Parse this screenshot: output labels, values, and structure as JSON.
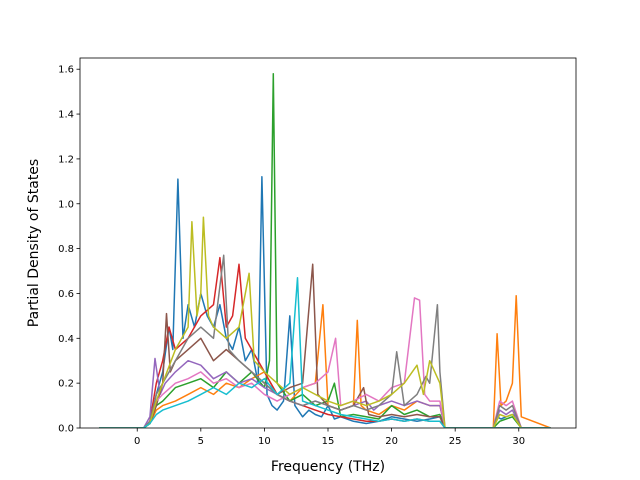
{
  "chart_data": {
    "type": "line",
    "title": "",
    "xlabel": "Frequency (THz)",
    "ylabel": "Partial Density of States",
    "xlim": [
      -4.5,
      34.5
    ],
    "ylim": [
      0,
      1.65
    ],
    "xticks": [
      0,
      5,
      10,
      15,
      20,
      25,
      30
    ],
    "yticks": [
      0.0,
      0.2,
      0.4,
      0.6,
      0.8,
      1.0,
      1.2,
      1.4,
      1.6
    ],
    "ytick_labels": [
      "0.0",
      "0.2",
      "0.4",
      "0.6",
      "0.8",
      "1.0",
      "1.2",
      "1.4",
      "1.6"
    ],
    "grid": false,
    "legend": "none",
    "series": [
      {
        "color": "#1f77b4",
        "x": [
          -3,
          0.5,
          1.0,
          1.5,
          2.0,
          2.5,
          2.8,
          3.2,
          3.6,
          4.0,
          4.5,
          5.0,
          5.5,
          6.0,
          6.5,
          7.0,
          7.5,
          8.0,
          8.5,
          9.0,
          9.5,
          9.8,
          10.2,
          10.6,
          11.0,
          11.5,
          12.0,
          12.4,
          13.0,
          13.5,
          14.0,
          14.5,
          15.0,
          15.5,
          16.0,
          17.0,
          18.0,
          19.0,
          20.0,
          21.0,
          22.0,
          23.0,
          23.8,
          24.2,
          28.0,
          28.3,
          28.6,
          29.0,
          29.5,
          29.8,
          30.2,
          32.5
        ],
        "y": [
          0,
          0,
          0.02,
          0.15,
          0.25,
          0.45,
          0.35,
          1.11,
          0.4,
          0.55,
          0.45,
          0.6,
          0.5,
          0.45,
          0.55,
          0.4,
          0.35,
          0.45,
          0.3,
          0.35,
          0.2,
          1.12,
          0.15,
          0.1,
          0.08,
          0.12,
          0.5,
          0.1,
          0.05,
          0.08,
          0.06,
          0.05,
          0.1,
          0.04,
          0.05,
          0.03,
          0.02,
          0.03,
          0.05,
          0.04,
          0.03,
          0.04,
          0.05,
          0,
          0,
          0.05,
          0.04,
          0.05,
          0.06,
          0.05,
          0,
          0
        ]
      },
      {
        "color": "#ff7f0e",
        "x": [
          -3,
          0.5,
          1.0,
          1.5,
          2.0,
          3.0,
          4.0,
          5.0,
          6.0,
          7.0,
          8.0,
          9.0,
          10.0,
          11.0,
          12.0,
          13.0,
          14.0,
          14.6,
          15.0,
          16.0,
          17.0,
          17.3,
          17.6,
          18.0,
          19.0,
          20.0,
          21.0,
          22.0,
          23.0,
          23.8,
          24.2,
          28.0,
          28.3,
          28.6,
          29.0,
          29.5,
          29.8,
          30.2,
          32.5
        ],
        "y": [
          0,
          0,
          0.02,
          0.08,
          0.1,
          0.12,
          0.15,
          0.18,
          0.15,
          0.2,
          0.18,
          0.22,
          0.25,
          0.15,
          0.12,
          0.18,
          0.2,
          0.55,
          0.1,
          0.08,
          0.1,
          0.48,
          0.1,
          0.08,
          0.06,
          0.1,
          0.08,
          0.12,
          0.1,
          0.1,
          0,
          0,
          0.42,
          0.1,
          0.12,
          0.2,
          0.59,
          0.05,
          0
        ]
      },
      {
        "color": "#2ca02c",
        "x": [
          -3,
          0.5,
          1.0,
          1.5,
          2.0,
          3.0,
          4.0,
          5.0,
          6.0,
          7.0,
          8.0,
          9.0,
          10.0,
          10.4,
          10.7,
          11.0,
          12.0,
          13.0,
          14.0,
          15.0,
          15.5,
          16.0,
          17.0,
          18.0,
          19.0,
          20.0,
          21.0,
          22.0,
          23.0,
          23.8,
          24.2,
          28.0,
          28.5,
          29.0,
          29.5,
          30.2,
          32.5
        ],
        "y": [
          0,
          0,
          0.02,
          0.1,
          0.12,
          0.18,
          0.2,
          0.22,
          0.18,
          0.25,
          0.2,
          0.25,
          0.18,
          0.3,
          1.58,
          0.2,
          0.12,
          0.15,
          0.1,
          0.12,
          0.2,
          0.05,
          0.06,
          0.05,
          0.04,
          0.1,
          0.06,
          0.08,
          0.05,
          0.06,
          0,
          0,
          0.03,
          0.04,
          0.05,
          0,
          0
        ]
      },
      {
        "color": "#d62728",
        "x": [
          -3,
          0.5,
          1.0,
          1.5,
          2.0,
          2.5,
          3.0,
          4.0,
          5.0,
          6.0,
          6.5,
          7.0,
          7.5,
          8.0,
          8.5,
          9.0,
          10.0,
          11.0,
          12.0,
          13.0,
          14.0,
          15.0,
          16.0,
          17.0,
          18.0,
          19.0,
          20.0,
          21.0,
          22.0,
          23.0,
          23.8,
          24.2,
          32.5
        ],
        "y": [
          0,
          0,
          0.03,
          0.2,
          0.3,
          0.45,
          0.35,
          0.4,
          0.5,
          0.55,
          0.76,
          0.45,
          0.5,
          0.73,
          0.4,
          0.35,
          0.25,
          0.15,
          0.12,
          0.1,
          0.08,
          0.06,
          0.05,
          0.04,
          0.03,
          0.03,
          0.04,
          0.03,
          0.04,
          0.03,
          0.03,
          0,
          0
        ]
      },
      {
        "color": "#9467bd",
        "x": [
          -3,
          0.5,
          1.0,
          1.4,
          1.8,
          2.2,
          3.0,
          4.0,
          5.0,
          6.0,
          7.0,
          8.0,
          9.0,
          10.0,
          11.0,
          12.0,
          13.0,
          14.0,
          15.0,
          16.0,
          17.0,
          18.0,
          18.6,
          19.0,
          20.0,
          21.0,
          22.0,
          23.0,
          23.8,
          24.2,
          28.0,
          28.5,
          29.0,
          29.5,
          30.2,
          32.5
        ],
        "y": [
          0,
          0,
          0.05,
          0.31,
          0.15,
          0.2,
          0.25,
          0.3,
          0.28,
          0.22,
          0.25,
          0.2,
          0.22,
          0.18,
          0.15,
          0.12,
          0.1,
          0.12,
          0.1,
          0.08,
          0.1,
          0.12,
          0.08,
          0.1,
          0.12,
          0.1,
          0.12,
          0.1,
          0.1,
          0,
          0,
          0.08,
          0.06,
          0.08,
          0,
          0
        ]
      },
      {
        "color": "#8c564b",
        "x": [
          -3,
          0.5,
          1.0,
          1.5,
          2.0,
          2.3,
          2.6,
          3.0,
          4.0,
          5.0,
          6.0,
          7.0,
          8.0,
          9.0,
          10.0,
          11.0,
          12.0,
          13.0,
          13.8,
          14.2,
          15.0,
          16.0,
          17.0,
          17.8,
          18.2,
          19.0,
          20.0,
          21.0,
          22.0,
          23.0,
          23.8,
          24.2,
          32.5
        ],
        "y": [
          0,
          0,
          0.02,
          0.1,
          0.2,
          0.51,
          0.25,
          0.3,
          0.35,
          0.4,
          0.3,
          0.35,
          0.3,
          0.25,
          0.2,
          0.15,
          0.18,
          0.2,
          0.73,
          0.15,
          0.1,
          0.08,
          0.1,
          0.18,
          0.06,
          0.05,
          0.06,
          0.05,
          0.06,
          0.05,
          0.05,
          0,
          0
        ]
      },
      {
        "color": "#e377c2",
        "x": [
          -3,
          0.5,
          1.0,
          1.5,
          2.0,
          3.0,
          4.0,
          5.0,
          6.0,
          7.0,
          8.0,
          9.0,
          10.0,
          11.0,
          12.0,
          13.0,
          14.0,
          15.0,
          15.6,
          16.0,
          17.0,
          18.0,
          19.0,
          20.0,
          21.0,
          21.8,
          22.2,
          22.6,
          23.0,
          23.8,
          24.2,
          28.0,
          28.5,
          29.0,
          29.5,
          30.2,
          32.5
        ],
        "y": [
          0,
          0,
          0.03,
          0.12,
          0.15,
          0.2,
          0.22,
          0.25,
          0.2,
          0.22,
          0.18,
          0.2,
          0.15,
          0.12,
          0.15,
          0.18,
          0.2,
          0.25,
          0.4,
          0.1,
          0.12,
          0.15,
          0.12,
          0.18,
          0.2,
          0.58,
          0.57,
          0.15,
          0.12,
          0.12,
          0,
          0,
          0.12,
          0.1,
          0.12,
          0,
          0
        ]
      },
      {
        "color": "#7f7f7f",
        "x": [
          -3,
          0.5,
          1.0,
          1.5,
          2.0,
          3.0,
          4.0,
          5.0,
          6.0,
          6.8,
          7.2,
          8.0,
          9.0,
          10.0,
          11.0,
          12.0,
          13.0,
          14.0,
          15.0,
          16.0,
          17.0,
          18.0,
          19.0,
          20.0,
          20.4,
          21.0,
          22.0,
          22.7,
          23.0,
          23.6,
          23.8,
          24.2,
          28.0,
          28.5,
          29.0,
          29.5,
          30.2,
          32.5
        ],
        "y": [
          0,
          0,
          0.03,
          0.15,
          0.2,
          0.3,
          0.4,
          0.45,
          0.4,
          0.77,
          0.35,
          0.3,
          0.25,
          0.2,
          0.15,
          0.12,
          0.1,
          0.12,
          0.1,
          0.08,
          0.1,
          0.08,
          0.1,
          0.15,
          0.34,
          0.1,
          0.15,
          0.23,
          0.2,
          0.55,
          0.25,
          0,
          0,
          0.1,
          0.08,
          0.1,
          0,
          0
        ]
      },
      {
        "color": "#bcbd22",
        "x": [
          -3,
          0.5,
          1.0,
          1.5,
          2.0,
          3.0,
          4.0,
          4.3,
          4.7,
          5.0,
          5.2,
          5.6,
          6.0,
          7.0,
          8.0,
          8.8,
          9.2,
          10.0,
          11.0,
          12.0,
          13.0,
          14.0,
          15.0,
          16.0,
          17.0,
          18.0,
          19.0,
          20.0,
          21.0,
          22.0,
          22.5,
          23.0,
          23.8,
          24.2,
          28.0,
          28.5,
          29.0,
          29.5,
          30.2,
          32.5
        ],
        "y": [
          0,
          0,
          0.02,
          0.12,
          0.2,
          0.35,
          0.45,
          0.92,
          0.5,
          0.6,
          0.94,
          0.5,
          0.45,
          0.4,
          0.45,
          0.69,
          0.3,
          0.25,
          0.2,
          0.15,
          0.18,
          0.15,
          0.12,
          0.1,
          0.12,
          0.1,
          0.12,
          0.15,
          0.2,
          0.28,
          0.15,
          0.3,
          0.2,
          0,
          0,
          0.06,
          0.05,
          0.06,
          0,
          0
        ]
      },
      {
        "color": "#17becf",
        "x": [
          -3,
          0.5,
          1.0,
          1.5,
          2.0,
          3.0,
          4.0,
          5.0,
          6.0,
          7.0,
          8.0,
          9.0,
          10.0,
          11.0,
          12.0,
          12.6,
          13.0,
          14.0,
          15.0,
          16.0,
          17.0,
          18.0,
          19.0,
          20.0,
          21.0,
          22.0,
          23.0,
          23.8,
          24.2,
          32.5
        ],
        "y": [
          0,
          0,
          0.02,
          0.06,
          0.08,
          0.1,
          0.12,
          0.15,
          0.18,
          0.15,
          0.2,
          0.18,
          0.22,
          0.15,
          0.2,
          0.67,
          0.12,
          0.1,
          0.08,
          0.06,
          0.05,
          0.04,
          0.03,
          0.04,
          0.03,
          0.04,
          0.03,
          0.03,
          0,
          0
        ]
      }
    ]
  }
}
